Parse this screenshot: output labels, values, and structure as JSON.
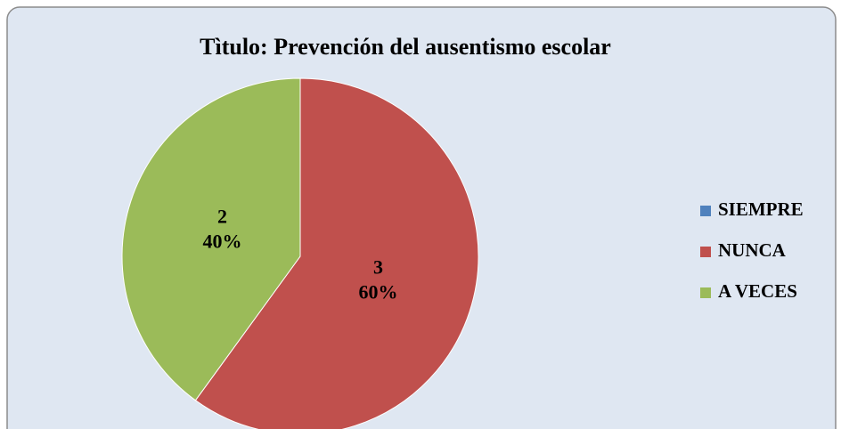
{
  "chart_data": {
    "type": "pie",
    "title": "Tìtulo: Prevención del ausentismo escolar",
    "categories": [
      "SIEMPRE",
      "NUNCA",
      "A VECES"
    ],
    "values": [
      0,
      3,
      2
    ],
    "percent_labels": [
      null,
      "60%",
      "40%"
    ],
    "colors": [
      "#4f81bd",
      "#c0504d",
      "#9bbb59"
    ],
    "legend": "right"
  }
}
